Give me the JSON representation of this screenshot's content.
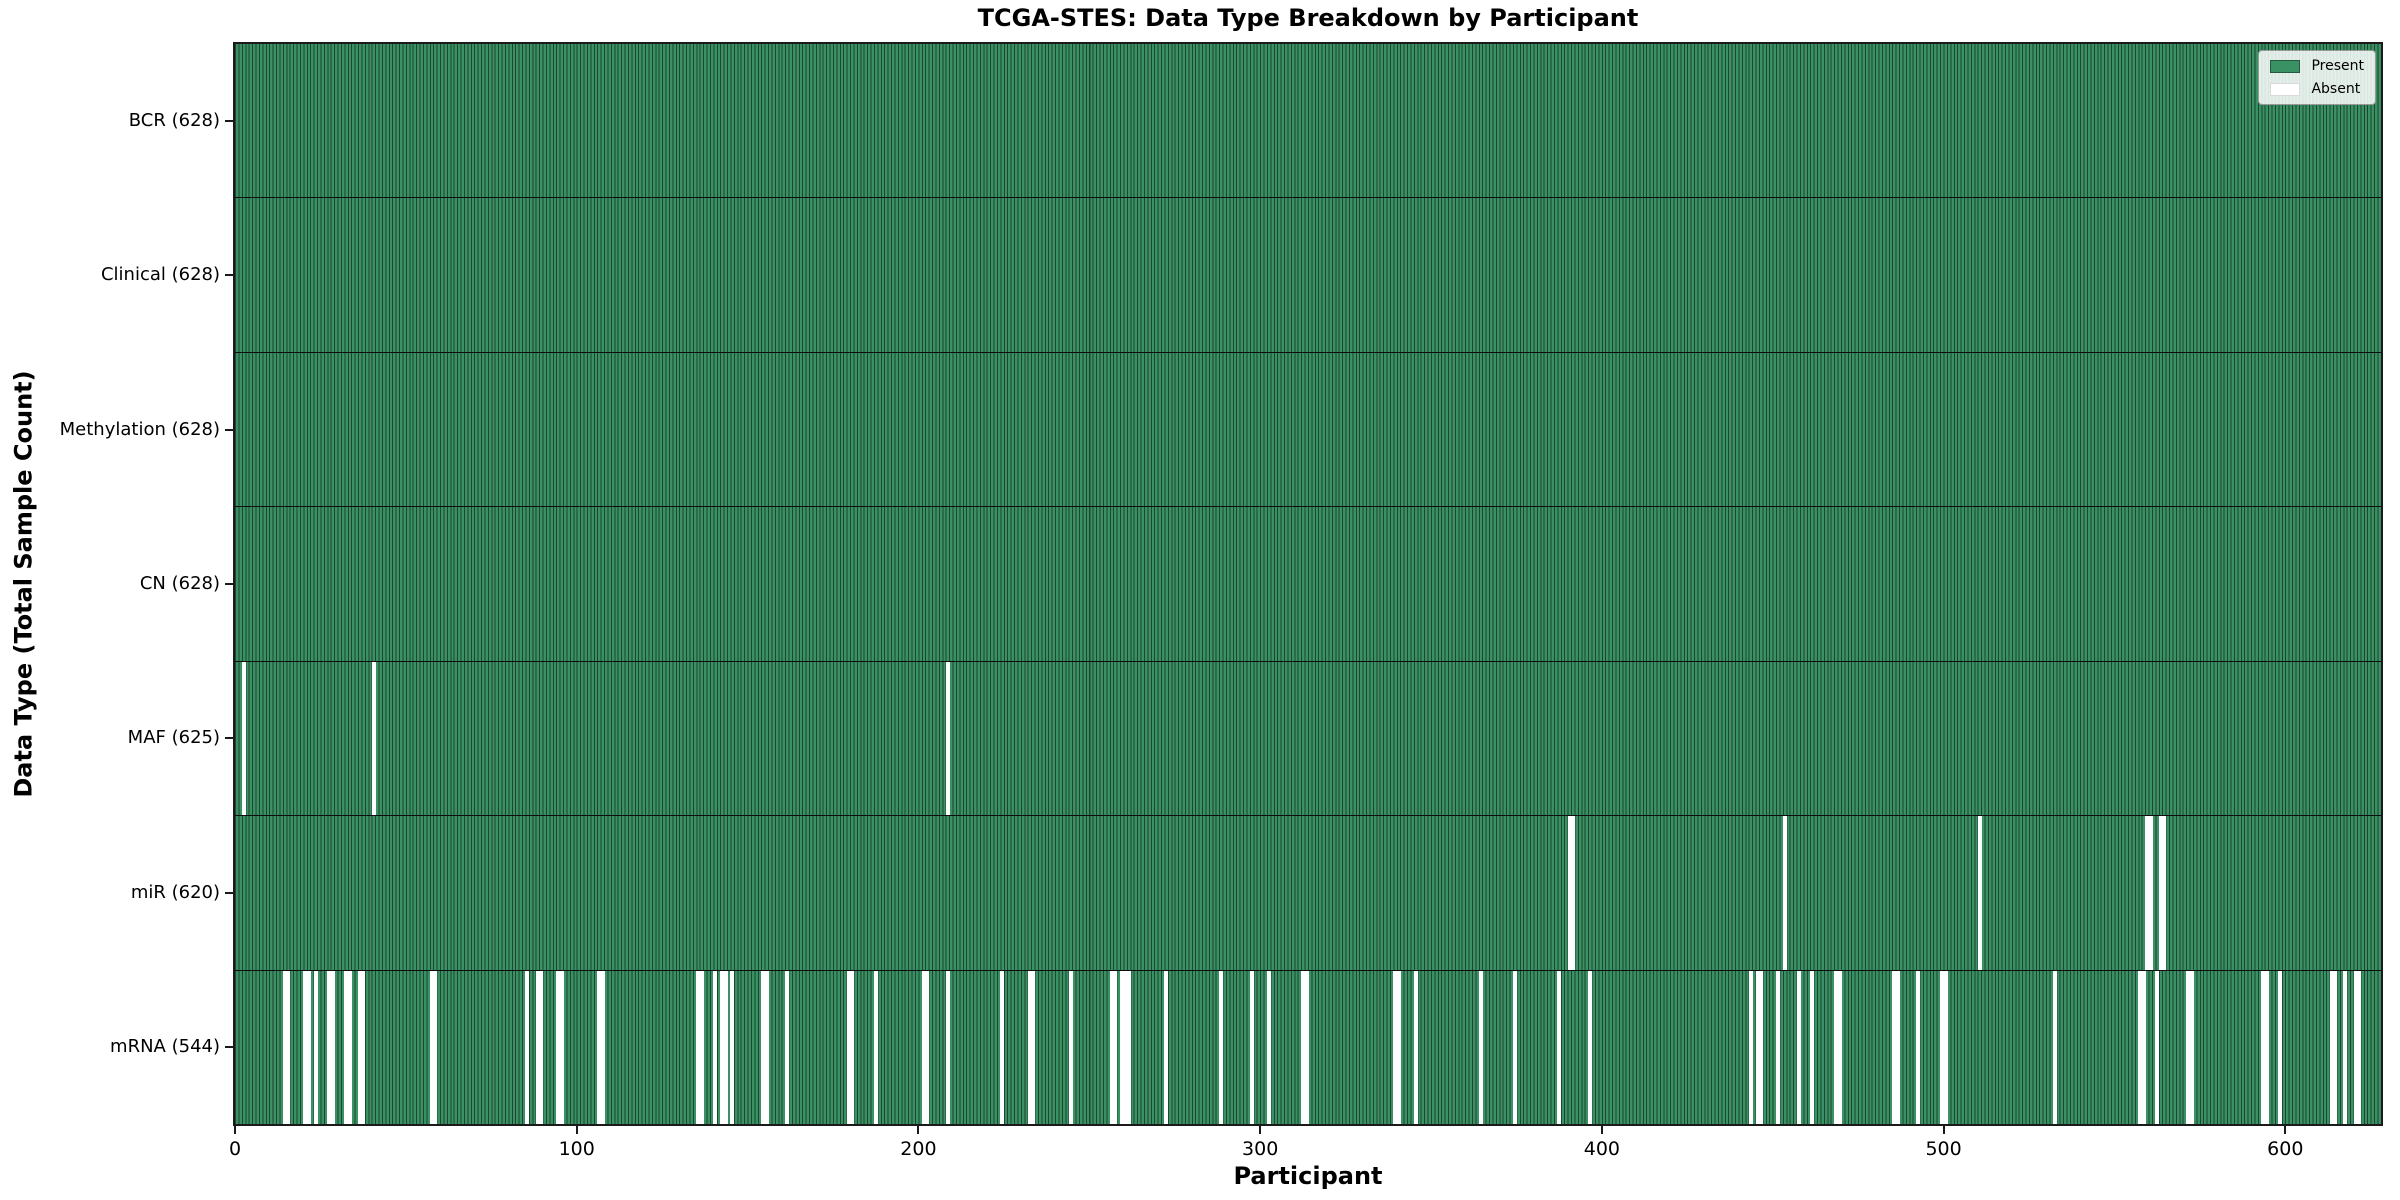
{
  "title": "TCGA-STES: Data Type Breakdown by Participant",
  "xlabel": "Participant",
  "ylabel": "Data Type (Total Sample Count)",
  "legend": {
    "present_label": "Present",
    "absent_label": "Absent"
  },
  "colors": {
    "present": "#3a9164",
    "bar_edge": "#1d4531",
    "absent": "#ffffff",
    "axis": "#1a1a1a"
  },
  "chart_data": {
    "type": "heatmap",
    "title": "TCGA-STES: Data Type Breakdown by Participant",
    "xlabel": "Participant",
    "ylabel": "Data Type (Total Sample Count)",
    "x_range": [
      0,
      628
    ],
    "x_ticks": [
      0,
      100,
      200,
      300,
      400,
      500,
      600
    ],
    "grid": false,
    "legend_position": "upper right",
    "legend_entries": [
      "Present",
      "Absent"
    ],
    "cell_values": {
      "present": 1,
      "absent": 0
    },
    "rows": [
      {
        "name": "BCR",
        "label": "BCR (628)",
        "total": 628,
        "absent": []
      },
      {
        "name": "Clinical",
        "label": "Clinical (628)",
        "total": 628,
        "absent": []
      },
      {
        "name": "Methylation",
        "label": "Methylation (628)",
        "total": 628,
        "absent": []
      },
      {
        "name": "CN",
        "label": "CN (628)",
        "total": 628,
        "absent": []
      },
      {
        "name": "MAF",
        "label": "MAF (625)",
        "total": 625,
        "absent": [
          2,
          40,
          208
        ]
      },
      {
        "name": "miR",
        "label": "miR (620)",
        "total": 620,
        "absent": [
          390,
          391,
          453,
          510,
          559,
          560,
          563,
          564
        ]
      },
      {
        "name": "mRNA",
        "label": "mRNA (544)",
        "total": 544,
        "absent": [
          14,
          15,
          20,
          21,
          23,
          27,
          28,
          32,
          33,
          36,
          37,
          57,
          58,
          85,
          88,
          89,
          94,
          95,
          106,
          107,
          135,
          136,
          140,
          142,
          143,
          145,
          154,
          155,
          161,
          179,
          180,
          187,
          201,
          202,
          208,
          224,
          232,
          233,
          244,
          256,
          257,
          259,
          260,
          261,
          272,
          288,
          297,
          302,
          312,
          313,
          339,
          340,
          345,
          364,
          374,
          387,
          396,
          443,
          445,
          446,
          451,
          457,
          461,
          468,
          469,
          485,
          486,
          492,
          499,
          500,
          532,
          557,
          558,
          562,
          571,
          572,
          593,
          594,
          598,
          613,
          614,
          617,
          620,
          621
        ]
      }
    ]
  }
}
